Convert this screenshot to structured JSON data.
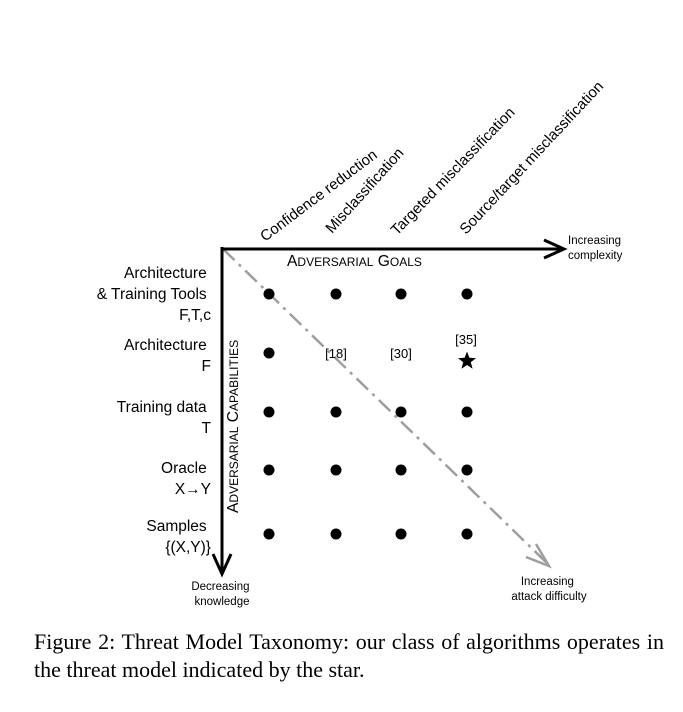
{
  "goals": {
    "items": [
      "Confidence reduction",
      "Misclassification",
      "Targeted misclassification",
      "Source/target misclassification"
    ],
    "axis_title": "Adversarial Goals",
    "axis_end_label": [
      "Increasing",
      "complexity"
    ]
  },
  "capabilities": {
    "axis_title": "Adversarial Capabilities",
    "axis_end_label": [
      "Decreasing",
      "knowledge"
    ],
    "rows": [
      {
        "lines": [
          "Architecture",
          "& Training Tools",
          "F,T,c"
        ]
      },
      {
        "lines": [
          "Architecture",
          "F"
        ]
      },
      {
        "lines": [
          "Training data",
          "T"
        ]
      },
      {
        "lines": [
          "Oracle",
          "X→Y"
        ]
      },
      {
        "lines": [
          "Samples",
          "{(X,Y)}"
        ]
      }
    ]
  },
  "grid": [
    [
      "dot",
      "dot",
      "dot",
      "dot"
    ],
    [
      "dot",
      "[18]",
      "[30]",
      "star"
    ],
    [
      "dot",
      "dot",
      "dot",
      "dot"
    ],
    [
      "dot",
      "dot",
      "dot",
      "dot"
    ],
    [
      "dot",
      "dot",
      "dot",
      "dot"
    ]
  ],
  "star_reference": "[35]",
  "difficulty_label": [
    "Increasing",
    "attack difficulty"
  ],
  "caption": "Figure 2: Threat Model Taxonomy: our class of algorithms operates in the threat model indicated by the star.",
  "colors": {
    "ink": "#000000",
    "diagonal": "#9e9e9e"
  }
}
